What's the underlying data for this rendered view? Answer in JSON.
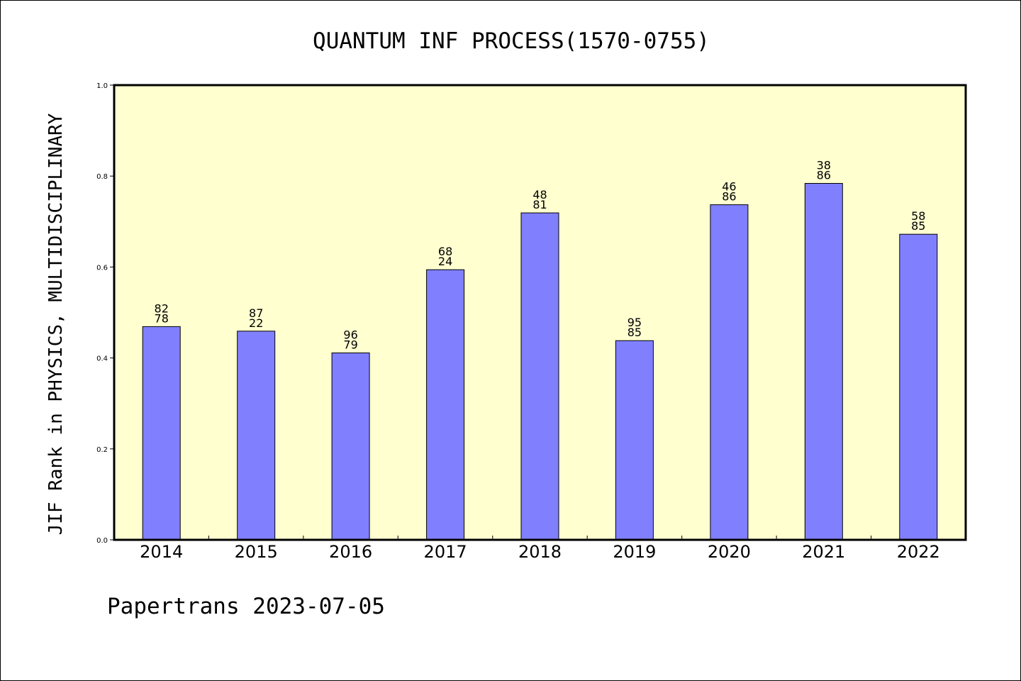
{
  "chart_data": {
    "type": "bar",
    "title": "QUANTUM INF PROCESS(1570-0755)",
    "xlabel": "",
    "ylabel": "JIF Rank in PHYSICS, MULTIDISCIPLINARY",
    "ylim": [
      0,
      1.0
    ],
    "yticks": [
      "0.0",
      "0.2",
      "0.4",
      "0.6",
      "0.8",
      "1.0"
    ],
    "categories": [
      "2014",
      "2015",
      "2016",
      "2017",
      "2018",
      "2019",
      "2020",
      "2021",
      "2022"
    ],
    "values": [
      0.469,
      0.459,
      0.411,
      0.594,
      0.719,
      0.438,
      0.737,
      0.784,
      0.672
    ],
    "bar_labels": [
      [
        "82",
        "78"
      ],
      [
        "87",
        "22"
      ],
      [
        "96",
        "79"
      ],
      [
        "68",
        "24"
      ],
      [
        "48",
        "81"
      ],
      [
        "95",
        "85"
      ],
      [
        "46",
        "86"
      ],
      [
        "38",
        "86"
      ],
      [
        "58",
        "85"
      ]
    ],
    "grid": false,
    "colors": {
      "bar": "#8080ff",
      "plot_background": "#ffffd0",
      "axis": "#000000"
    }
  },
  "footer": "Papertrans 2023-07-05"
}
